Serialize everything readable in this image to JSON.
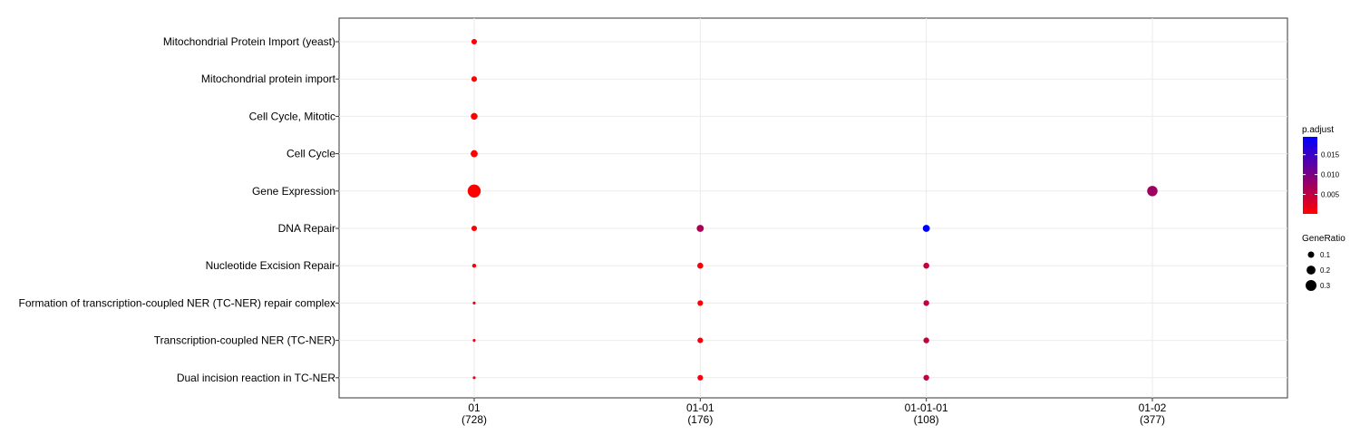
{
  "chart_data": {
    "type": "scatter",
    "title": "",
    "xlabel": "",
    "ylabel": "",
    "grid": true,
    "legend_position": "right",
    "x_categories": [
      {
        "label": "01",
        "count": "(728)"
      },
      {
        "label": "01-01",
        "count": "(176)"
      },
      {
        "label": "01-01-01",
        "count": "(108)"
      },
      {
        "label": "01-02",
        "count": "(377)"
      }
    ],
    "y_categories": [
      "Mitochondrial Protein Import (yeast)",
      "Mitochondrial protein import",
      "Cell Cycle, Mitotic",
      "Cell Cycle",
      "Gene Expression",
      "DNA Repair",
      "Nucleotide Excision Repair",
      "Formation of transcription-coupled NER (TC-NER) repair complex",
      "Transcription-coupled NER (TC-NER)",
      "Dual incision reaction in TC-NER"
    ],
    "points": [
      {
        "x": "01",
        "y": "Mitochondrial Protein Import (yeast)",
        "gene_ratio": 0.06,
        "p_adjust": 0.0001
      },
      {
        "x": "01",
        "y": "Mitochondrial protein import",
        "gene_ratio": 0.06,
        "p_adjust": 0.0001
      },
      {
        "x": "01",
        "y": "Cell Cycle, Mitotic",
        "gene_ratio": 0.09,
        "p_adjust": 0.0001
      },
      {
        "x": "01",
        "y": "Cell Cycle",
        "gene_ratio": 0.1,
        "p_adjust": 0.0001
      },
      {
        "x": "01",
        "y": "Gene Expression",
        "gene_ratio": 0.35,
        "p_adjust": 0.0001
      },
      {
        "x": "01",
        "y": "DNA Repair",
        "gene_ratio": 0.06,
        "p_adjust": 0.0004
      },
      {
        "x": "01",
        "y": "Nucleotide Excision Repair",
        "gene_ratio": 0.03,
        "p_adjust": 0.001
      },
      {
        "x": "01",
        "y": "Formation of transcription-coupled NER (TC-NER) repair complex",
        "gene_ratio": 0.015,
        "p_adjust": 0.0015
      },
      {
        "x": "01",
        "y": "Transcription-coupled NER (TC-NER)",
        "gene_ratio": 0.015,
        "p_adjust": 0.0015
      },
      {
        "x": "01",
        "y": "Dual incision reaction in TC-NER",
        "gene_ratio": 0.015,
        "p_adjust": 0.0015
      },
      {
        "x": "01-01",
        "y": "DNA Repair",
        "gene_ratio": 0.1,
        "p_adjust": 0.0065
      },
      {
        "x": "01-01",
        "y": "Nucleotide Excision Repair",
        "gene_ratio": 0.07,
        "p_adjust": 0.0008
      },
      {
        "x": "01-01",
        "y": "Formation of transcription-coupled NER (TC-NER) repair complex",
        "gene_ratio": 0.06,
        "p_adjust": 0.0008
      },
      {
        "x": "01-01",
        "y": "Transcription-coupled NER (TC-NER)",
        "gene_ratio": 0.06,
        "p_adjust": 0.0008
      },
      {
        "x": "01-01",
        "y": "Dual incision reaction in TC-NER",
        "gene_ratio": 0.06,
        "p_adjust": 0.0008
      },
      {
        "x": "01-01-01",
        "y": "DNA Repair",
        "gene_ratio": 0.1,
        "p_adjust": 0.0195
      },
      {
        "x": "01-01-01",
        "y": "Nucleotide Excision Repair",
        "gene_ratio": 0.07,
        "p_adjust": 0.0045
      },
      {
        "x": "01-01-01",
        "y": "Formation of transcription-coupled NER (TC-NER) repair complex",
        "gene_ratio": 0.065,
        "p_adjust": 0.0045
      },
      {
        "x": "01-01-01",
        "y": "Transcription-coupled NER (TC-NER)",
        "gene_ratio": 0.065,
        "p_adjust": 0.0045
      },
      {
        "x": "01-01-01",
        "y": "Dual incision reaction in TC-NER",
        "gene_ratio": 0.065,
        "p_adjust": 0.0045
      },
      {
        "x": "01-02",
        "y": "Gene Expression",
        "gene_ratio": 0.22,
        "p_adjust": 0.0075
      }
    ],
    "color_legend": {
      "title": "p.adjust",
      "range": [
        0.0001,
        0.0195
      ],
      "ticks": [
        {
          "value": 0.005,
          "label": "0.005"
        },
        {
          "value": 0.01,
          "label": "0.010"
        },
        {
          "value": 0.015,
          "label": "0.015"
        }
      ],
      "color_low": "#ff0000",
      "color_high": "#0000ff"
    },
    "size_legend": {
      "title": "GeneRatio",
      "range": [
        0.015,
        0.35
      ],
      "ticks": [
        {
          "value": 0.1,
          "label": "0.1"
        },
        {
          "value": 0.2,
          "label": "0.2"
        },
        {
          "value": 0.3,
          "label": "0.3"
        }
      ]
    }
  }
}
